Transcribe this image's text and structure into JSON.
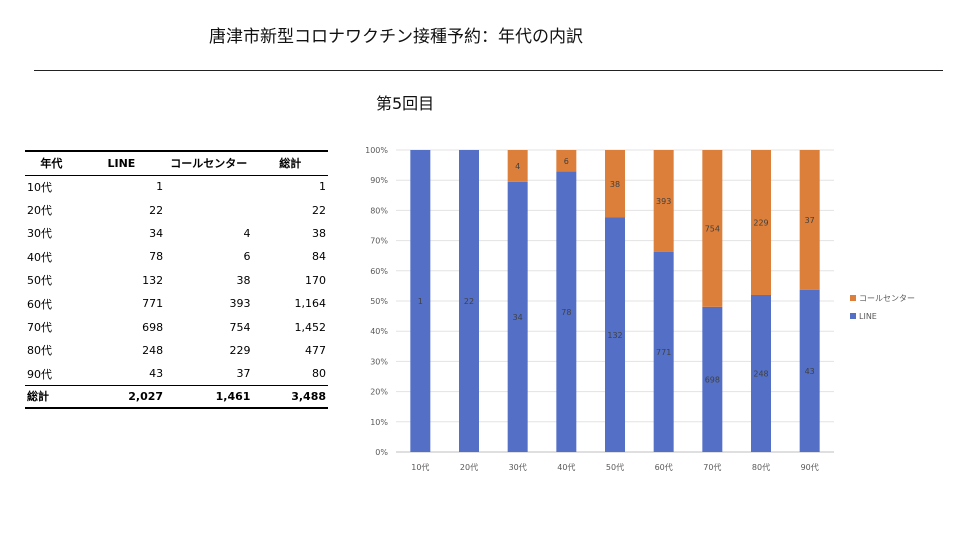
{
  "header": {
    "title": "唐津市新型コロナワクチン接種予約：年代の内訳",
    "subtitle": "第5回目"
  },
  "table": {
    "headers": [
      "年代",
      "LINE",
      "コールセンター",
      "総計"
    ],
    "rows": [
      [
        "10代",
        "1",
        "",
        "1"
      ],
      [
        "20代",
        "22",
        "",
        "22"
      ],
      [
        "30代",
        "34",
        "4",
        "38"
      ],
      [
        "40代",
        "78",
        "6",
        "84"
      ],
      [
        "50代",
        "132",
        "38",
        "170"
      ],
      [
        "60代",
        "771",
        "393",
        "1,164"
      ],
      [
        "70代",
        "698",
        "754",
        "1,452"
      ],
      [
        "80代",
        "248",
        "229",
        "477"
      ],
      [
        "90代",
        "43",
        "37",
        "80"
      ]
    ],
    "total": [
      "総計",
      "2,027",
      "1,461",
      "3,488"
    ]
  },
  "chart_data": {
    "type": "bar",
    "stacked": "percent",
    "categories": [
      "10代",
      "20代",
      "30代",
      "40代",
      "50代",
      "60代",
      "70代",
      "80代",
      "90代"
    ],
    "series": [
      {
        "name": "LINE",
        "color": "#5470C6",
        "values": [
          1,
          22,
          34,
          78,
          132,
          771,
          698,
          248,
          43
        ]
      },
      {
        "name": "コールセンター",
        "color": "#DC7F3A",
        "values": [
          0,
          0,
          4,
          6,
          38,
          393,
          754,
          229,
          37
        ]
      }
    ],
    "yticks": [
      "0%",
      "10%",
      "20%",
      "30%",
      "40%",
      "50%",
      "60%",
      "70%",
      "80%",
      "90%",
      "100%"
    ],
    "ylim": [
      0,
      100
    ],
    "legend": "right",
    "grid": true
  }
}
